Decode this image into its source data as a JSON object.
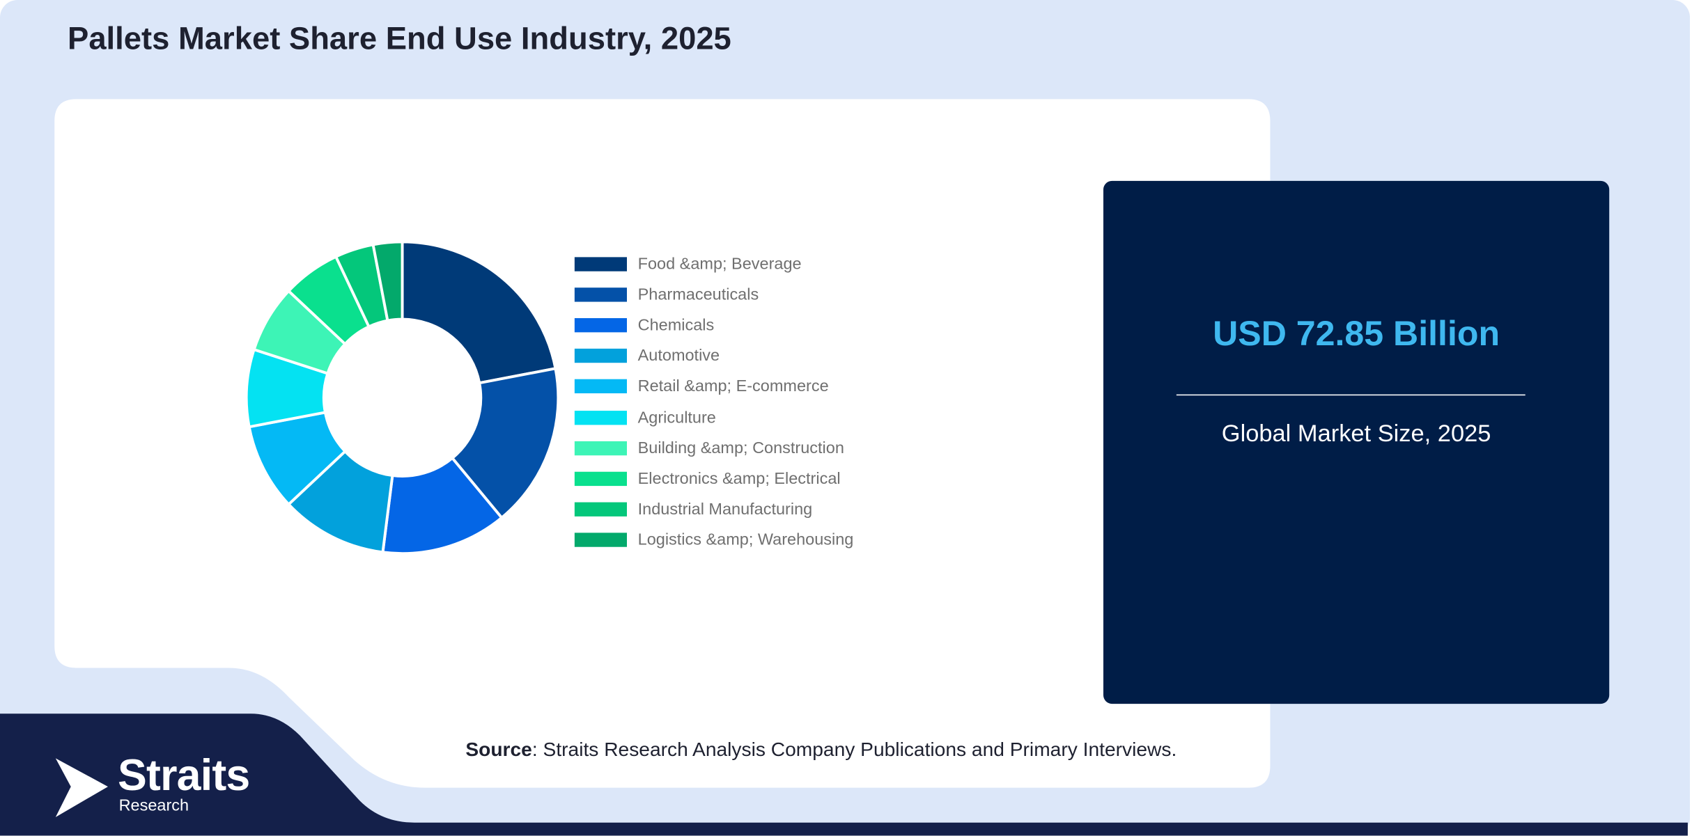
{
  "title": "Pallets Market Share End Use Industry, 2025",
  "market": {
    "value": "USD 72.85 Billion",
    "label": "Global Market Size, 2025"
  },
  "source": {
    "prefix": "Source",
    "text": ": Straits Research Analysis Company Publications and Primary Interviews."
  },
  "brand": {
    "name": "Straits",
    "sub": "Research"
  },
  "colors": {
    "background": "#dce7f9",
    "panel": "#ffffff",
    "card": "#001d47",
    "footer_band": "#14204a",
    "market_value": "#3fb8ef"
  },
  "chart_data": {
    "type": "pie",
    "donut": true,
    "legend_position": "right",
    "categories": [
      "Food &amp; Beverage",
      "Pharmaceuticals",
      "Chemicals",
      "Automotive",
      "Retail &amp; E-commerce",
      "Agriculture",
      "Building &amp; Construction",
      "Electronics &amp; Electrical",
      "Industrial Manufacturing",
      "Logistics &amp; Warehousing"
    ],
    "values": [
      22,
      17,
      13,
      11,
      9,
      8,
      7,
      6,
      4,
      3
    ],
    "colors": [
      "#003a78",
      "#0451a8",
      "#0466e6",
      "#02a1dc",
      "#04b9f5",
      "#04e2f2",
      "#3df4b6",
      "#0ae08e",
      "#04c77b",
      "#03a96b"
    ]
  }
}
